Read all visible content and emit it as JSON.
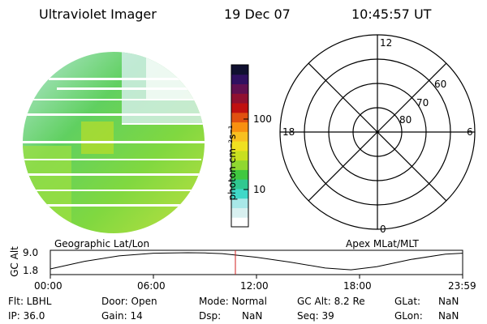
{
  "header": {
    "title": "Ultraviolet Imager",
    "date": "19 Dec 07",
    "time": "10:45:57 UT"
  },
  "colorbar": {
    "unit_label": "photon cm⁻²s⁻¹",
    "ticks": [
      "100",
      "10"
    ],
    "colors": [
      "#ffffff",
      "#d8f0f0",
      "#a8e8e8",
      "#40d8c8",
      "#30c890",
      "#40c840",
      "#90d830",
      "#c8e020",
      "#f0e020",
      "#f8c020",
      "#f89010",
      "#e05010",
      "#c01010",
      "#901030",
      "#601050",
      "#301060",
      "#101030"
    ]
  },
  "polar_plot": {
    "labels": {
      "top": "12",
      "left": "18",
      "right": "6",
      "bottom": "0"
    },
    "ring_labels": [
      "60",
      "70",
      "80"
    ]
  },
  "panel_labels": {
    "left": "Geographic Lat/Lon",
    "right": "Apex MLat/MLT"
  },
  "altitude_plot": {
    "ylabel": "GC Alt",
    "yticks": [
      "9.0",
      "1.8"
    ],
    "xticks": [
      "00:00",
      "06:00",
      "12:00",
      "18:00",
      "23:59"
    ],
    "series_hours": [
      0,
      2,
      4,
      6,
      8,
      9,
      10,
      12,
      14,
      16,
      17.5,
      19,
      21,
      23,
      23.98
    ],
    "series_alt": [
      1.8,
      5.2,
      7.6,
      8.8,
      9.0,
      8.9,
      8.6,
      7.0,
      4.8,
      2.2,
      1.4,
      2.8,
      6.0,
      8.4,
      8.8
    ],
    "marker_hour": 10.77,
    "marker_color": "#d02020"
  },
  "footer": {
    "flt": "Flt: LBHL",
    "door": "Door: Open",
    "mode": "Mode: Normal",
    "gc_alt": "GC Alt: 8.2 Re",
    "glat_label": "GLat:",
    "glat_value": "NaN",
    "ip": "IP: 36.0",
    "gain": "Gain: 14",
    "dsp_label": "Dsp:",
    "dsp_value": "NaN",
    "seq": "Seq: 39",
    "glon_label": "GLon:",
    "glon_value": "NaN"
  }
}
